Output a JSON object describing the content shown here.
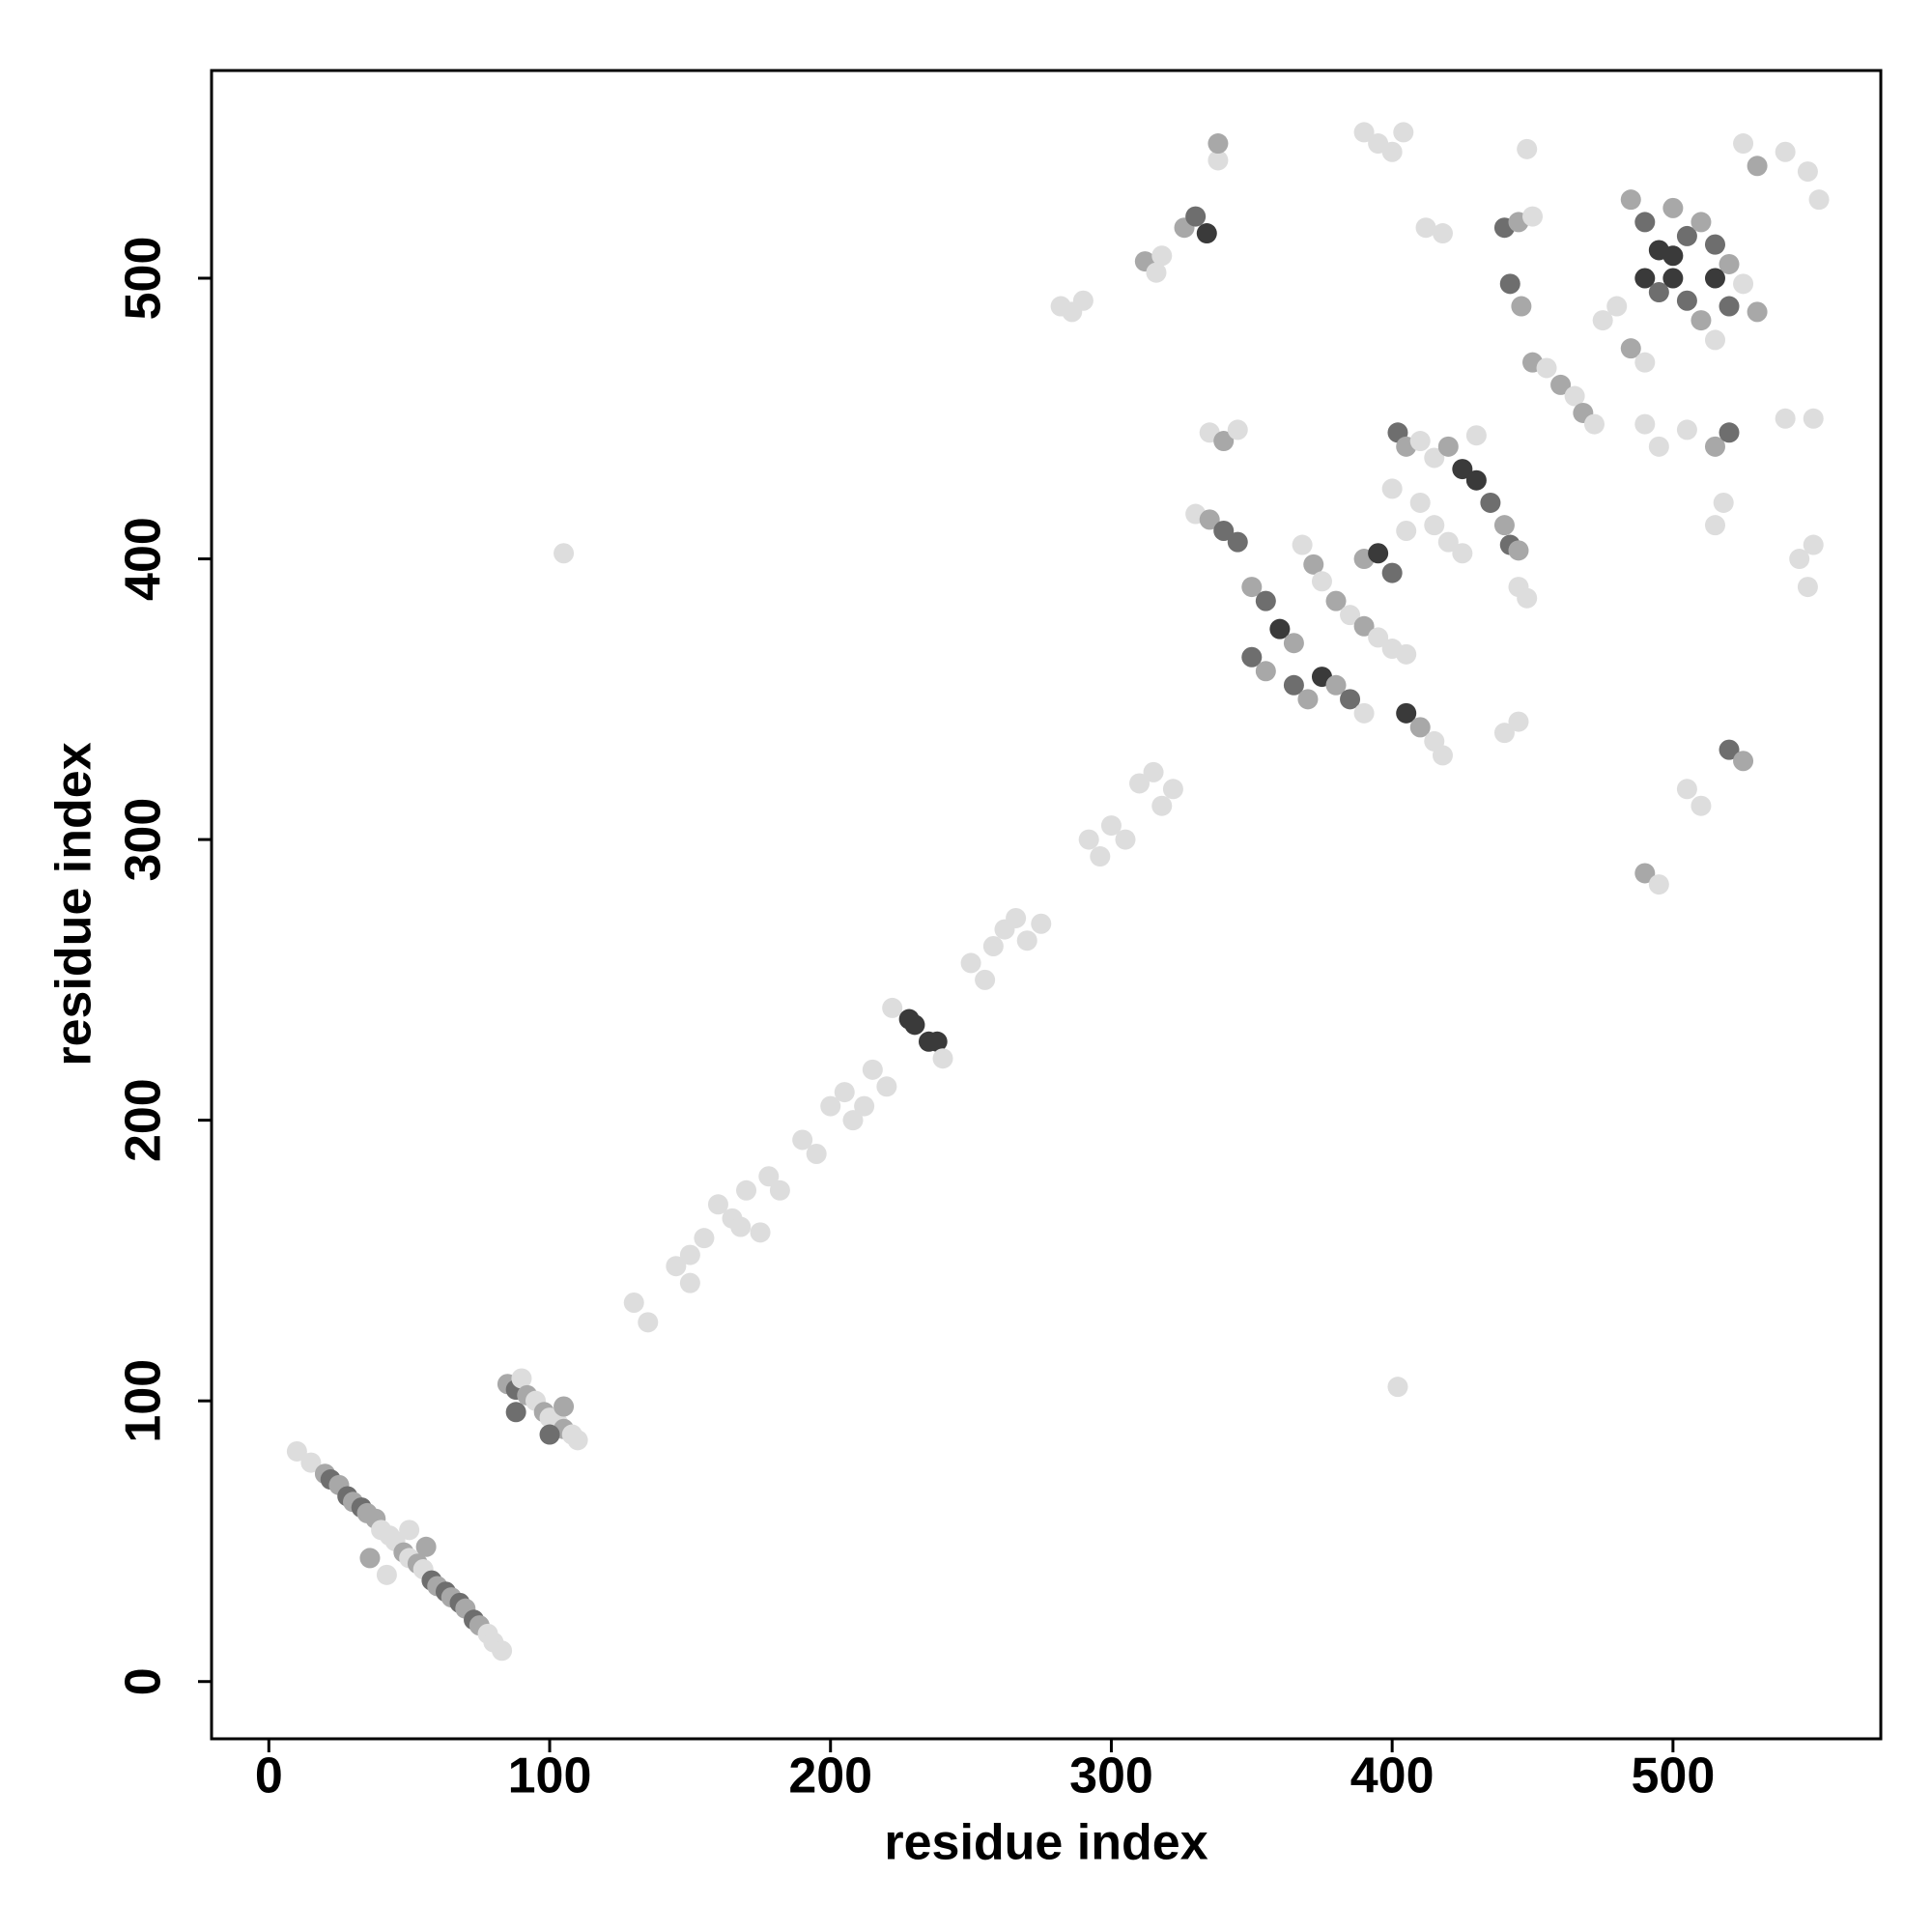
{
  "chart_data": {
    "type": "scatter",
    "x_label": "residue index",
    "y_label": "residue index",
    "xlim": [
      -20.4,
      574
    ],
    "ylim": [
      -20.4,
      574
    ],
    "xticks": [
      0,
      100,
      200,
      300,
      400,
      500
    ],
    "yticks": [
      0,
      100,
      200,
      300,
      400,
      500
    ],
    "x": [
      10,
      15,
      20,
      22,
      25,
      28,
      30,
      33,
      35,
      38,
      40,
      43,
      45,
      48,
      50,
      53,
      55,
      58,
      60,
      63,
      65,
      68,
      70,
      73,
      75,
      78,
      80,
      83,
      36,
      42,
      50,
      56,
      85,
      88,
      90,
      92,
      95,
      98,
      100,
      103,
      105,
      108,
      110,
      88,
      100,
      105,
      105,
      402,
      130,
      135,
      145,
      150,
      155,
      150,
      160,
      165,
      170,
      175,
      168,
      178,
      182,
      190,
      195,
      200,
      205,
      208,
      212,
      215,
      220,
      222,
      228,
      230,
      235,
      238,
      240,
      250,
      255,
      258,
      262,
      266,
      270,
      275,
      292,
      296,
      300,
      305,
      310,
      315,
      318,
      322,
      282,
      286,
      290,
      312,
      316,
      318,
      326,
      330,
      334,
      338,
      338,
      390,
      395,
      400,
      404,
      330,
      335,
      340,
      345,
      350,
      355,
      360,
      365,
      350,
      355,
      365,
      370,
      375,
      380,
      385,
      390,
      368,
      372,
      375,
      380,
      385,
      390,
      395,
      400,
      405,
      390,
      395,
      400,
      335,
      340,
      345,
      402,
      405,
      410,
      415,
      420,
      425,
      430,
      435,
      440,
      442,
      445,
      410,
      415,
      420,
      425,
      400,
      405,
      430,
      445,
      448,
      405,
      410,
      415,
      418,
      440,
      445,
      485,
      490,
      495,
      500,
      505,
      510,
      515,
      490,
      495,
      500,
      505,
      510,
      515,
      520,
      525,
      530,
      480,
      475,
      485,
      490,
      500,
      520,
      515,
      440,
      445,
      442,
      446,
      450,
      448,
      418,
      412,
      450,
      455,
      460,
      465,
      468,
      472,
      490,
      495,
      505,
      515,
      520,
      518,
      515,
      520,
      525,
      505,
      510,
      490,
      495,
      525,
      530,
      540,
      548,
      552,
      540,
      550,
      545,
      550,
      548
    ],
    "values": [
      82,
      78,
      74,
      72,
      70,
      66,
      64,
      62,
      60,
      58,
      54,
      52,
      50,
      46,
      44,
      42,
      40,
      36,
      34,
      32,
      30,
      28,
      26,
      22,
      20,
      17,
      14,
      11,
      44,
      38,
      54,
      48,
      106,
      104,
      108,
      102,
      100,
      96,
      94,
      92,
      90,
      88,
      86,
      96,
      88,
      98,
      402,
      105,
      135,
      128,
      148,
      152,
      158,
      142,
      170,
      165,
      175,
      160,
      162,
      180,
      175,
      193,
      188,
      205,
      210,
      200,
      205,
      218,
      212,
      240,
      236,
      234,
      228,
      228,
      222,
      256,
      250,
      262,
      268,
      272,
      264,
      270,
      300,
      294,
      305,
      300,
      320,
      324,
      312,
      318,
      490,
      488,
      492,
      506,
      502,
      508,
      518,
      522,
      516,
      542,
      548,
      552,
      548,
      545,
      552,
      416,
      414,
      410,
      406,
      390,
      385,
      375,
      370,
      365,
      360,
      355,
      350,
      358,
      355,
      350,
      345,
      405,
      398,
      392,
      385,
      380,
      376,
      372,
      368,
      366,
      400,
      402,
      395,
      445,
      442,
      446,
      445,
      440,
      442,
      436,
      440,
      432,
      428,
      420,
      412,
      405,
      403,
      420,
      412,
      406,
      402,
      425,
      410,
      444,
      390,
      386,
      345,
      340,
      335,
      330,
      338,
      342,
      528,
      520,
      510,
      500,
      492,
      485,
      478,
      500,
      495,
      508,
      515,
      520,
      512,
      505,
      498,
      488,
      490,
      485,
      475,
      470,
      525,
      490,
      500,
      518,
      520,
      498,
      490,
      522,
      546,
      516,
      518,
      470,
      468,
      462,
      458,
      452,
      448,
      448,
      440,
      446,
      440,
      445,
      420,
      412,
      332,
      328,
      318,
      312,
      288,
      284,
      548,
      540,
      545,
      538,
      528,
      450,
      450,
      400,
      405,
      390
    ],
    "colors": [
      "#dddddd",
      "#dddddd",
      "#a8a8a8",
      "#6e6e6e",
      "#a8a8a8",
      "#6e6e6e",
      "#a8a8a8",
      "#6e6e6e",
      "#a8a8a8",
      "#a8a8a8",
      "#dddddd",
      "#dddddd",
      "#dddddd",
      "#a8a8a8",
      "#dddddd",
      "#a8a8a8",
      "#dddddd",
      "#6e6e6e",
      "#a8a8a8",
      "#6e6e6e",
      "#a8a8a8",
      "#6e6e6e",
      "#a8a8a8",
      "#6e6e6e",
      "#a8a8a8",
      "#dddddd",
      "#dddddd",
      "#dddddd",
      "#a8a8a8",
      "#dddddd",
      "#dddddd",
      "#a8a8a8",
      "#a8a8a8",
      "#6e6e6e",
      "#dddddd",
      "#a8a8a8",
      "#dddddd",
      "#a8a8a8",
      "#dddddd",
      "#dddddd",
      "#a8a8a8",
      "#dddddd",
      "#dddddd",
      "#6e6e6e",
      "#6e6e6e",
      "#a8a8a8",
      "#dddddd",
      "#dddddd",
      "#dddddd",
      "#dddddd",
      "#dddddd",
      "#dddddd",
      "#dddddd",
      "#dddddd",
      "#dddddd",
      "#dddddd",
      "#dddddd",
      "#dddddd",
      "#dddddd",
      "#dddddd",
      "#dddddd",
      "#dddddd",
      "#dddddd",
      "#dddddd",
      "#dddddd",
      "#dddddd",
      "#dddddd",
      "#dddddd",
      "#dddddd",
      "#dddddd",
      "#3a3a3a",
      "#3a3a3a",
      "#3a3a3a",
      "#3a3a3a",
      "#dddddd",
      "#dddddd",
      "#dddddd",
      "#dddddd",
      "#dddddd",
      "#dddddd",
      "#dddddd",
      "#dddddd",
      "#dddddd",
      "#dddddd",
      "#dddddd",
      "#dddddd",
      "#dddddd",
      "#dddddd",
      "#dddddd",
      "#dddddd",
      "#dddddd",
      "#dddddd",
      "#dddddd",
      "#a8a8a8",
      "#dddddd",
      "#dddddd",
      "#a8a8a8",
      "#6e6e6e",
      "#3a3a3a",
      "#dddddd",
      "#a8a8a8",
      "#dddddd",
      "#dddddd",
      "#dddddd",
      "#dddddd",
      "#dddddd",
      "#a8a8a8",
      "#6e6e6e",
      "#6e6e6e",
      "#a8a8a8",
      "#6e6e6e",
      "#3a3a3a",
      "#a8a8a8",
      "#6e6e6e",
      "#a8a8a8",
      "#6e6e6e",
      "#a8a8a8",
      "#3a3a3a",
      "#a8a8a8",
      "#6e6e6e",
      "#dddddd",
      "#dddddd",
      "#a8a8a8",
      "#dddddd",
      "#a8a8a8",
      "#dddddd",
      "#a8a8a8",
      "#dddddd",
      "#dddddd",
      "#dddddd",
      "#a8a8a8",
      "#3a3a3a",
      "#6e6e6e",
      "#dddddd",
      "#a8a8a8",
      "#dddddd",
      "#6e6e6e",
      "#a8a8a8",
      "#dddddd",
      "#dddddd",
      "#a8a8a8",
      "#3a3a3a",
      "#3a3a3a",
      "#6e6e6e",
      "#a8a8a8",
      "#6e6e6e",
      "#a8a8a8",
      "#dddddd",
      "#dddddd",
      "#dddddd",
      "#dddddd",
      "#dddddd",
      "#dddddd",
      "#dddddd",
      "#dddddd",
      "#dddddd",
      "#3a3a3a",
      "#a8a8a8",
      "#dddddd",
      "#dddddd",
      "#dddddd",
      "#dddddd",
      "#a8a8a8",
      "#6e6e6e",
      "#3a3a3a",
      "#3a3a3a",
      "#6e6e6e",
      "#a8a8a8",
      "#dddddd",
      "#3a3a3a",
      "#6e6e6e",
      "#3a3a3a",
      "#6e6e6e",
      "#a8a8a8",
      "#6e6e6e",
      "#a8a8a8",
      "#dddddd",
      "#a8a8a8",
      "#dddddd",
      "#dddddd",
      "#a8a8a8",
      "#dddddd",
      "#a8a8a8",
      "#6e6e6e",
      "#3a3a3a",
      "#6e6e6e",
      "#a8a8a8",
      "#6e6e6e",
      "#a8a8a8",
      "#dddddd",
      "#dddddd",
      "#dddddd",
      "#dddddd",
      "#a8a8a8",
      "#dddddd",
      "#a8a8a8",
      "#dddddd",
      "#a8a8a8",
      "#dddddd",
      "#dddddd",
      "#dddddd",
      "#dddddd",
      "#a8a8a8",
      "#6e6e6e",
      "#dddddd",
      "#dddddd",
      "#6e6e6e",
      "#a8a8a8",
      "#dddddd",
      "#dddddd",
      "#a8a8a8",
      "#dddddd",
      "#dddddd",
      "#a8a8a8",
      "#dddddd",
      "#dddddd",
      "#dddddd",
      "#dddddd",
      "#dddddd",
      "#dddddd",
      "#dddddd",
      "#dddddd"
    ]
  }
}
